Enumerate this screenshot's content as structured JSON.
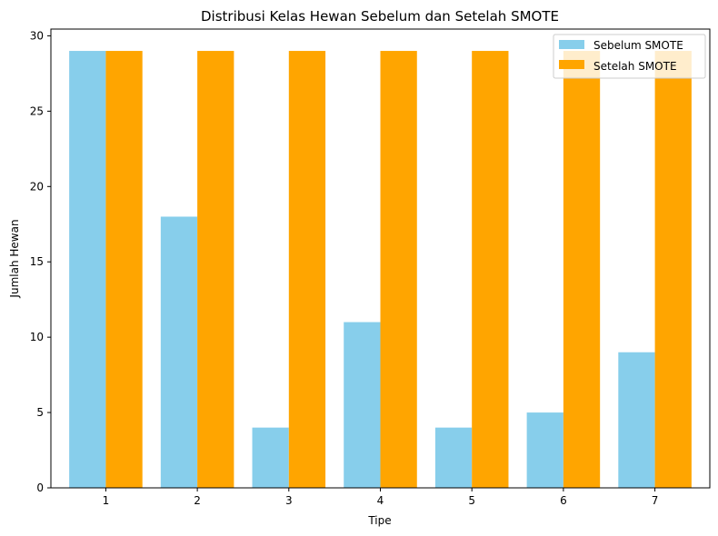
{
  "chart_data": {
    "type": "bar",
    "title": "Distribusi Kelas Hewan Sebelum dan Setelah SMOTE",
    "xlabel": "Tipe",
    "ylabel": "Jumlah Hewan",
    "categories": [
      "1",
      "2",
      "3",
      "4",
      "5",
      "6",
      "7"
    ],
    "ylim": [
      0,
      30.45
    ],
    "yticks": [
      0,
      5,
      10,
      15,
      20,
      25,
      30
    ],
    "grid": false,
    "legend_position": "top-right",
    "series": [
      {
        "name": "Sebelum SMOTE",
        "color": "#87CEEB",
        "values": [
          29,
          18,
          4,
          11,
          4,
          5,
          9
        ]
      },
      {
        "name": "Setelah SMOTE",
        "color": "#FFA500",
        "values": [
          29,
          29,
          29,
          29,
          29,
          29,
          29
        ]
      }
    ]
  }
}
